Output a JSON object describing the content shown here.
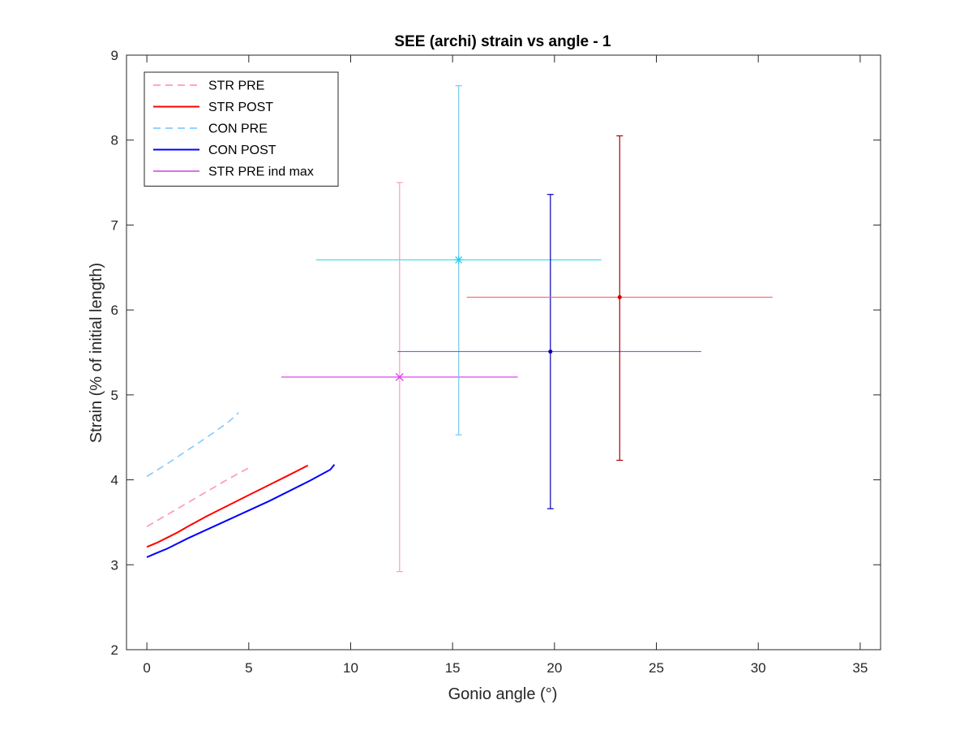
{
  "chart_data": {
    "type": "line",
    "title": "SEE (archi) strain vs angle - 1",
    "xlabel": "Gonio angle (°)",
    "ylabel": "Strain (% of initial length)",
    "xlim": [
      -1,
      36
    ],
    "ylim": [
      2,
      9
    ],
    "xticks": [
      0,
      5,
      10,
      15,
      20,
      25,
      30,
      35
    ],
    "yticks": [
      2,
      3,
      4,
      5,
      6,
      7,
      8,
      9
    ],
    "grid": false,
    "legend_position": "top-left",
    "series": [
      {
        "name": "STR PRE",
        "color": "#ff99bb",
        "style": "dashed",
        "x": [
          0,
          1,
          2,
          3,
          4,
          5,
          5.1
        ],
        "y": [
          3.45,
          3.59,
          3.73,
          3.87,
          4.01,
          4.14,
          4.16
        ]
      },
      {
        "name": "STR POST",
        "color": "#ff0000",
        "style": "solid",
        "x": [
          0,
          0.5,
          1,
          1.5,
          2,
          3,
          4,
          5,
          5.5,
          6,
          7,
          7.5,
          7.9
        ],
        "y": [
          3.21,
          3.26,
          3.32,
          3.38,
          3.45,
          3.58,
          3.7,
          3.82,
          3.88,
          3.94,
          4.06,
          4.12,
          4.17
        ]
      },
      {
        "name": "CON PRE",
        "color": "#88ccff",
        "style": "dashed",
        "x": [
          0,
          1,
          2,
          3,
          4,
          4.5
        ],
        "y": [
          4.04,
          4.19,
          4.35,
          4.51,
          4.68,
          4.79
        ]
      },
      {
        "name": "CON POST",
        "color": "#0000ff",
        "style": "solid",
        "x": [
          0,
          0.5,
          1,
          1.5,
          2,
          3,
          4,
          5,
          6,
          7,
          8,
          9,
          9.2
        ],
        "y": [
          3.09,
          3.14,
          3.19,
          3.25,
          3.31,
          3.42,
          3.53,
          3.64,
          3.75,
          3.87,
          3.99,
          4.12,
          4.18
        ]
      },
      {
        "name": "STR PRE ind max",
        "color": "#cc44dd",
        "style": "solid",
        "legend_only": true
      }
    ],
    "errorbars": [
      {
        "color": "#ff99cc",
        "hcolor": "#dd44ee",
        "marker": "x",
        "mcolor": "#dd44ee",
        "x": 12.4,
        "y": 5.21,
        "xerr": [
          6.6,
          18.2
        ],
        "yerr": [
          2.92,
          7.5
        ]
      },
      {
        "color": "#77c8ee",
        "hcolor": "#44ddee",
        "marker": "star",
        "mcolor": "#33ccee",
        "x": 15.3,
        "y": 6.59,
        "xerr": [
          8.3,
          22.3
        ],
        "yerr": [
          4.53,
          8.64
        ]
      },
      {
        "color": "#0000bb",
        "hcolor": "#6666ee",
        "marker": "dot",
        "mcolor": "#0000bb",
        "x": 19.8,
        "y": 5.51,
        "xerr": [
          12.3,
          27.2
        ],
        "yerr": [
          3.66,
          7.36
        ]
      },
      {
        "color": "#aa0000",
        "hcolor": "#ff6666",
        "marker": "dot",
        "mcolor": "#cc0000",
        "x": 23.2,
        "y": 6.15,
        "xerr": [
          15.7,
          30.7
        ],
        "yerr": [
          4.23,
          8.05
        ]
      }
    ]
  }
}
